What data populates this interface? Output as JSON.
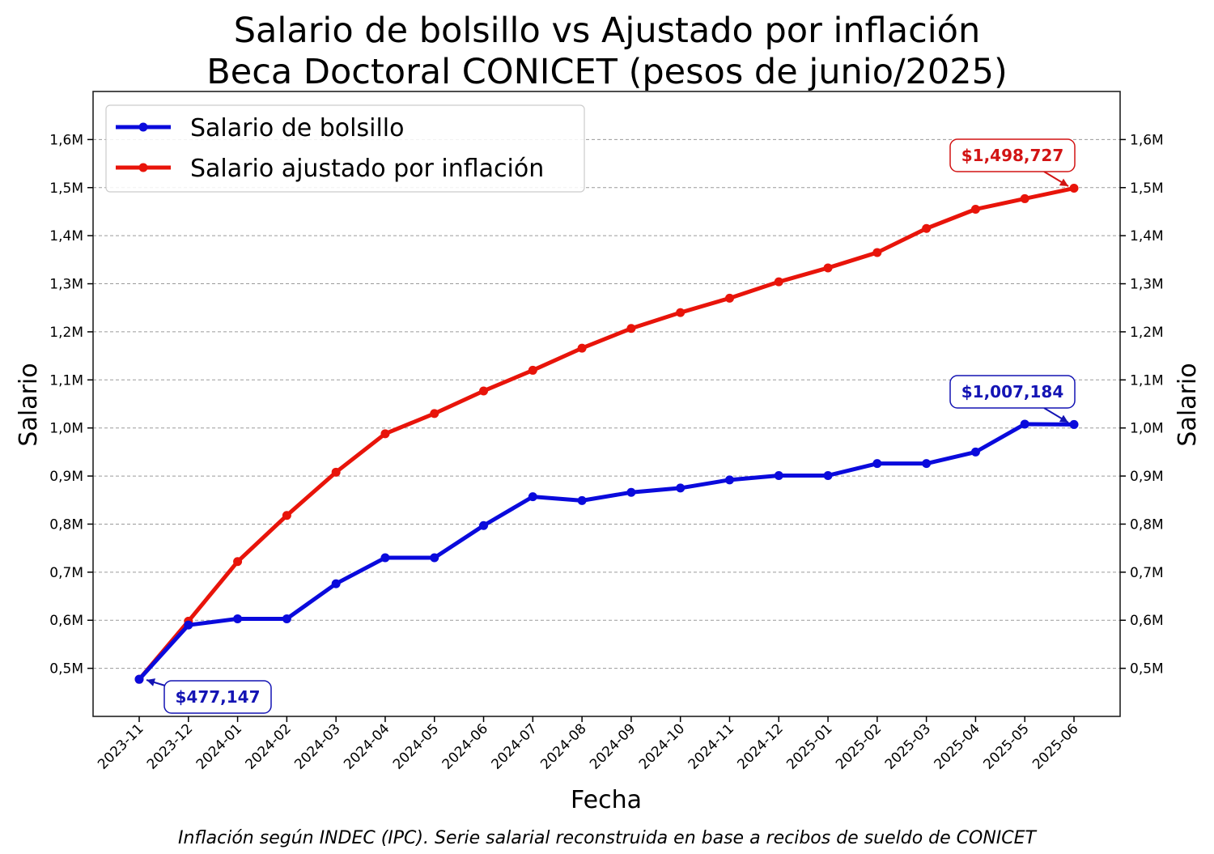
{
  "chart_data": {
    "type": "line",
    "title_line1": "Salario de bolsillo vs Ajustado por inflación",
    "title_line2": "Beca Doctoral CONICET (pesos de junio/2025)",
    "xlabel": "Fecha",
    "ylabel": "Salario",
    "ylabel_right": "Salario",
    "footnote": "Inflación según INDEC (IPC). Serie salarial reconstruida en base a recibos de sueldo de CONICET",
    "ylim": [
      400000,
      1700000
    ],
    "yticks": [
      500000,
      600000,
      700000,
      800000,
      900000,
      1000000,
      1100000,
      1200000,
      1300000,
      1400000,
      1500000,
      1600000
    ],
    "ytick_labels": [
      "0,5M",
      "0,6M",
      "0,7M",
      "0,8M",
      "0,9M",
      "1,0M",
      "1,1M",
      "1,2M",
      "1,3M",
      "1,4M",
      "1,5M",
      "1,6M"
    ],
    "grid": "horizontal dashed",
    "legend_position": "top-left",
    "categories": [
      "2023-11",
      "2023-12",
      "2024-01",
      "2024-02",
      "2024-03",
      "2024-04",
      "2024-05",
      "2024-06",
      "2024-07",
      "2024-08",
      "2024-09",
      "2024-10",
      "2024-11",
      "2024-12",
      "2025-01",
      "2025-02",
      "2025-03",
      "2025-04",
      "2025-05",
      "2025-06"
    ],
    "series": [
      {
        "name": "Salario de bolsillo",
        "color": "#0a0adc",
        "values": [
          477147,
          590000,
          603000,
          603000,
          676000,
          730000,
          730000,
          797000,
          857000,
          849000,
          866000,
          875000,
          892000,
          901000,
          901000,
          926000,
          926000,
          950000,
          1008000,
          1007184
        ]
      },
      {
        "name": "Salario ajustado por inflación",
        "color": "#e8140a",
        "values": [
          477147,
          598000,
          722000,
          818000,
          908000,
          988000,
          1030000,
          1077000,
          1120000,
          1166000,
          1207000,
          1240000,
          1270000,
          1304000,
          1333000,
          1365000,
          1415000,
          1455000,
          1477000,
          1498727
        ]
      }
    ],
    "annotations": [
      {
        "text": "$477,147",
        "series": 0,
        "index": 0,
        "color": "#1414b4"
      },
      {
        "text": "$1,007,184",
        "series": 0,
        "index": 19,
        "color": "#1414b4"
      },
      {
        "text": "$1,498,727",
        "series": 1,
        "index": 19,
        "color": "#d21414"
      }
    ]
  }
}
